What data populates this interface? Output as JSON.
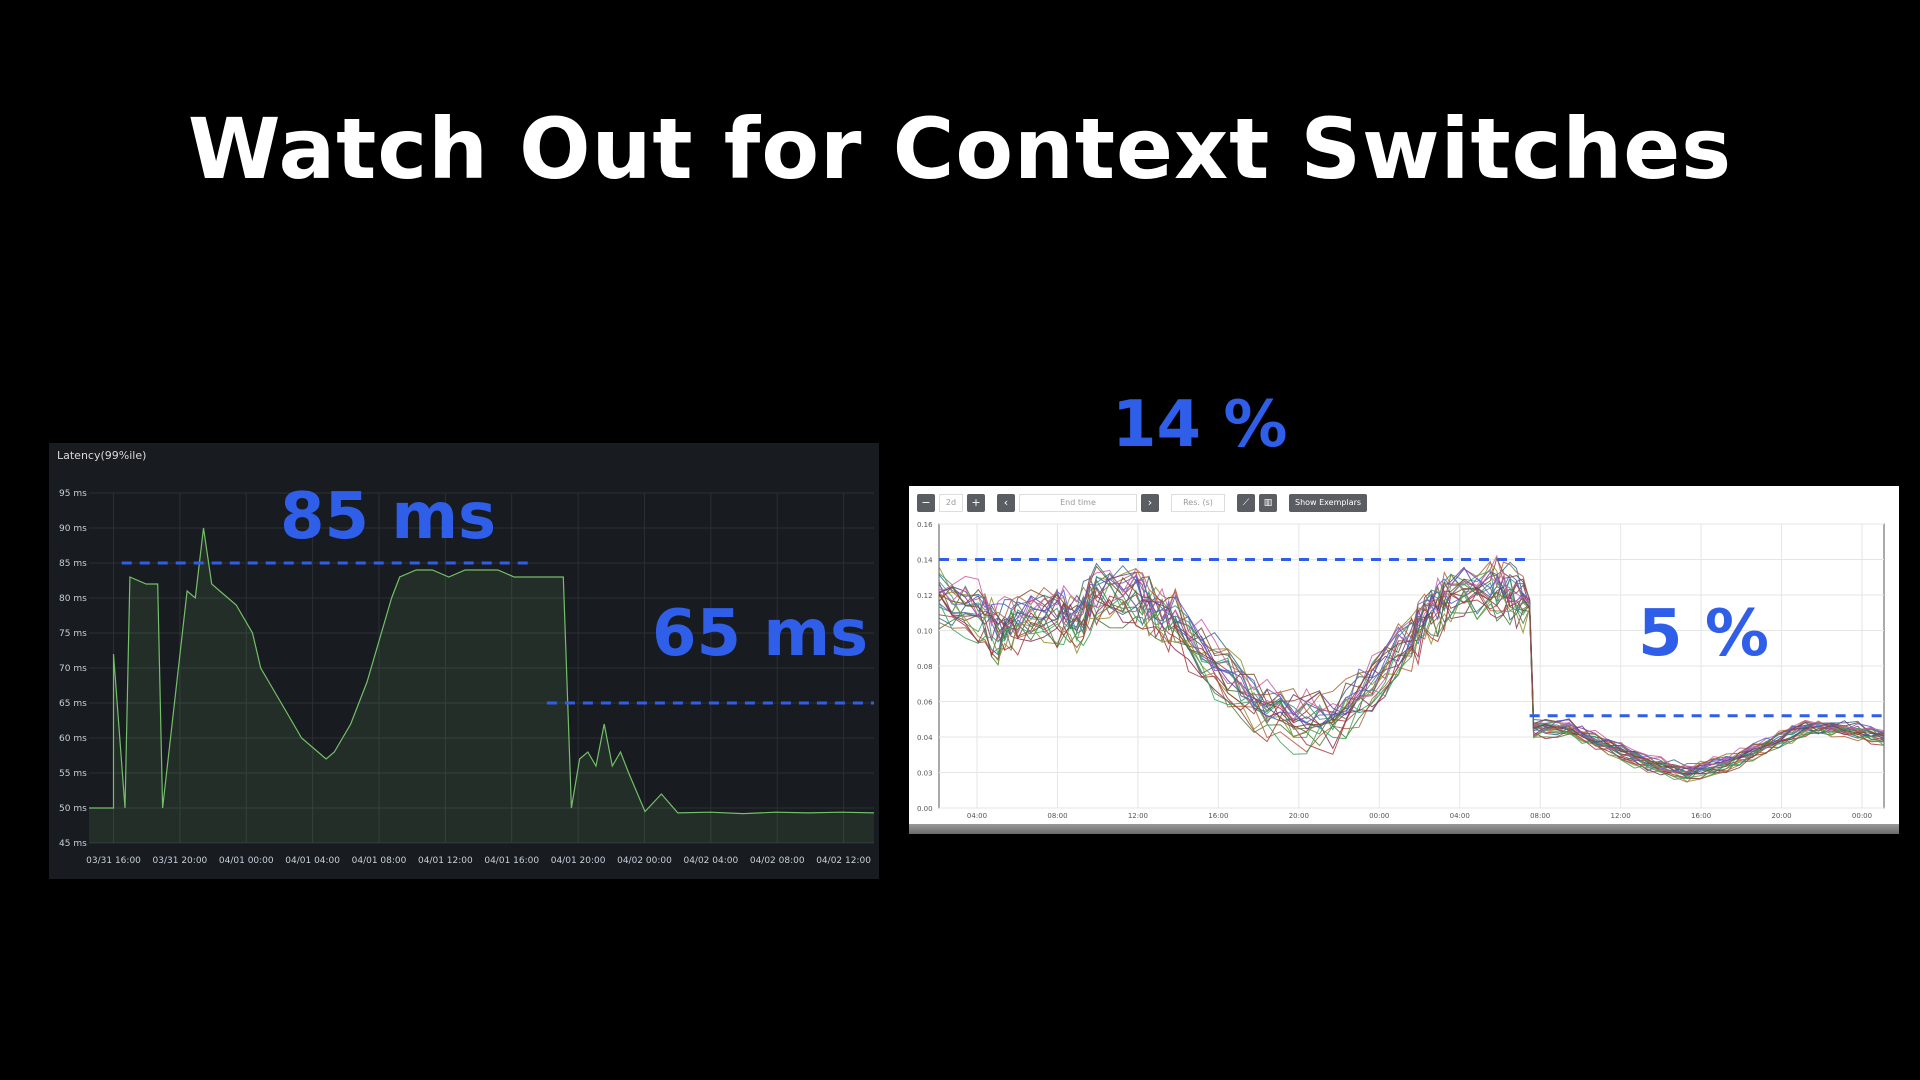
{
  "slide": {
    "title": "Watch Out for Context Switches"
  },
  "callouts": {
    "left_high": "85 ms",
    "left_low": "65 ms",
    "right_high": "14 %",
    "right_low": "5 %"
  },
  "colors": {
    "callout": "#2f5ee8",
    "left_bg": "#181b1f",
    "left_line": "#73bf69",
    "right_bg": "#ffffff"
  },
  "chart_data": [
    {
      "type": "line",
      "title": "Latency(99%ile)",
      "xlabel": "",
      "ylabel": "",
      "y_ticks": [
        "95 ms",
        "90 ms",
        "85 ms",
        "80 ms",
        "75 ms",
        "70 ms",
        "65 ms",
        "60 ms",
        "55 ms",
        "50 ms",
        "45 ms"
      ],
      "ylim": [
        45,
        95
      ],
      "x_ticks": [
        "03/31 16:00",
        "03/31 20:00",
        "04/01 00:00",
        "04/01 04:00",
        "04/01 08:00",
        "04/01 12:00",
        "04/01 16:00",
        "04/01 20:00",
        "04/02 00:00",
        "04/02 04:00",
        "04/02 08:00",
        "04/02 12:00"
      ],
      "xlim": [
        0,
        48
      ],
      "grid": true,
      "legend": "none",
      "series": [
        {
          "x": [
            0,
            1.5,
            1.5,
            2.2,
            2.5,
            3.5,
            4.2,
            4.5,
            6,
            6.5,
            7,
            7.5,
            8,
            9,
            10,
            10.5,
            11,
            12,
            13,
            14,
            14.5,
            15,
            16,
            17,
            18,
            18.5,
            19,
            20,
            21,
            22,
            23,
            24,
            25,
            26,
            27,
            28,
            28.5,
            29,
            29.5,
            30,
            30.5,
            31,
            31.5,
            32,
            32.5,
            33,
            34,
            35,
            36,
            38,
            40,
            42,
            44,
            46,
            48
          ],
          "y": [
            50,
            50,
            72,
            50,
            83,
            82,
            82,
            50,
            81,
            80,
            90,
            82,
            81,
            79,
            75,
            70,
            68,
            64,
            60,
            58,
            57,
            58,
            62,
            68,
            76,
            80,
            83,
            84,
            84,
            83,
            84,
            84,
            84,
            83,
            83,
            83,
            83,
            83,
            50,
            57,
            58,
            56,
            62,
            56,
            58,
            55,
            49.5,
            52,
            49.3,
            49.4,
            49.2,
            49.4,
            49.3,
            49.4,
            49.3
          ]
        }
      ],
      "annotation_lines": [
        {
          "label": "85 ms",
          "y": 85,
          "x_range": [
            2,
            27
          ]
        },
        {
          "label": "65 ms",
          "y": 65,
          "x_range": [
            28,
            48
          ]
        }
      ]
    },
    {
      "type": "line",
      "title": "",
      "xlabel": "",
      "ylabel": "",
      "toolbar": [
        "−",
        "2d",
        "+",
        "‹",
        "End time",
        "›",
        "Res. (s)",
        "Show Exemplars"
      ],
      "y_ticks": [
        "0.16",
        "0.14",
        "0.12",
        "0.10",
        "0.08",
        "0.06",
        "0.04",
        "0.03",
        "0.00"
      ],
      "ylim": [
        0,
        0.16
      ],
      "x_ticks": [
        "04:00",
        "08:00",
        "12:00",
        "16:00",
        "20:00",
        "00:00",
        "04:00",
        "08:00",
        "12:00",
        "16:00",
        "20:00",
        "00:00"
      ],
      "xlim": [
        2,
        50
      ],
      "grid": true,
      "legend": "none",
      "series_band": {
        "x": [
          2,
          4,
          5,
          6,
          8,
          9,
          10,
          12,
          13,
          14,
          16,
          18,
          20,
          22,
          24,
          26,
          27,
          28,
          30,
          31,
          32,
          32.2,
          34,
          36,
          38,
          40,
          42,
          44,
          46,
          48,
          50
        ],
        "y": [
          0.12,
          0.11,
          0.1,
          0.105,
          0.11,
          0.105,
          0.12,
          0.12,
          0.11,
          0.105,
          0.08,
          0.06,
          0.05,
          0.05,
          0.07,
          0.095,
          0.11,
          0.12,
          0.125,
          0.12,
          0.115,
          0.045,
          0.045,
          0.035,
          0.025,
          0.02,
          0.025,
          0.035,
          0.045,
          0.045,
          0.04
        ],
        "count": 24
      },
      "annotation_lines": [
        {
          "label": "14 %",
          "y": 0.14,
          "x_range": [
            2,
            32
          ]
        },
        {
          "label": "5 %",
          "y": 0.052,
          "x_range": [
            32,
            50
          ]
        }
      ]
    }
  ]
}
